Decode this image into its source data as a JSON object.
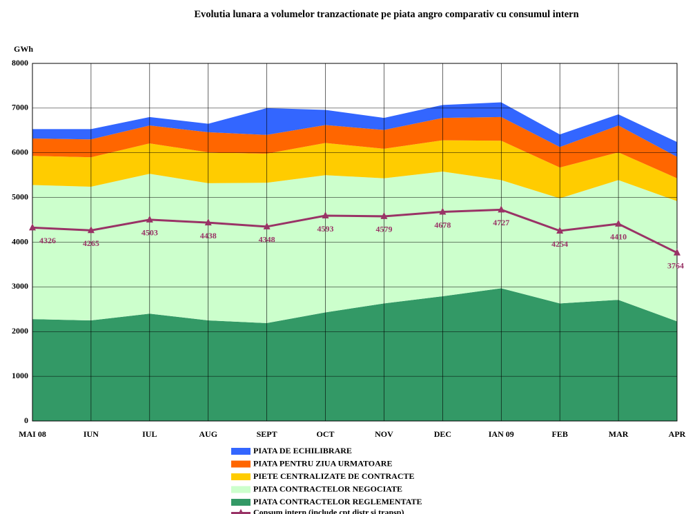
{
  "chart_data": {
    "type": "stacked-area-line",
    "title": "Evolutia lunara a volumelor tranzactionate pe piata angro comparativ cu consumul intern",
    "y_label": "GWh",
    "categories": [
      "MAI 08",
      "IUN",
      "IUL",
      "AUG",
      "SEPT",
      "OCT",
      "NOV",
      "DEC",
      "IAN 09",
      "FEB",
      "MAR",
      "APR"
    ],
    "ylim": [
      0,
      8000
    ],
    "yticks": [
      0,
      1000,
      2000,
      3000,
      4000,
      5000,
      6000,
      7000,
      8000
    ],
    "grid": true,
    "series": [
      {
        "name": "PIATA CONTRACTELOR REGLEMENTATE",
        "color": "#339966",
        "values": [
          2280,
          2250,
          2400,
          2250,
          2190,
          2430,
          2630,
          2790,
          2970,
          2630,
          2710,
          2230
        ]
      },
      {
        "name": "PIATA CONTRACTELOR NEGOCIATE",
        "color": "#CCFFCC",
        "values": [
          3000,
          2990,
          3130,
          3070,
          3140,
          3070,
          2800,
          2790,
          2420,
          2350,
          2680,
          2690
        ]
      },
      {
        "name": "PIETE CENTRALIZATE DE CONTRACTE",
        "color": "#FFCC00",
        "values": [
          650,
          660,
          680,
          690,
          650,
          720,
          660,
          700,
          880,
          690,
          620,
          510
        ]
      },
      {
        "name": "PIATA PENTRU ZIUA URMATOARE",
        "color": "#FF6600",
        "values": [
          390,
          400,
          400,
          450,
          420,
          400,
          420,
          500,
          530,
          460,
          600,
          480
        ]
      },
      {
        "name": "PIATA DE ECHILIBRARE",
        "color": "#3366FF",
        "values": [
          210,
          230,
          190,
          190,
          600,
          340,
          270,
          290,
          330,
          280,
          250,
          330
        ]
      }
    ],
    "line": {
      "name": "Consum intern (include cpt distr si transp)",
      "color": "#993366",
      "values": [
        4326,
        4265,
        4503,
        4438,
        4348,
        4593,
        4579,
        4678,
        4727,
        4254,
        4410,
        3764
      ]
    }
  }
}
